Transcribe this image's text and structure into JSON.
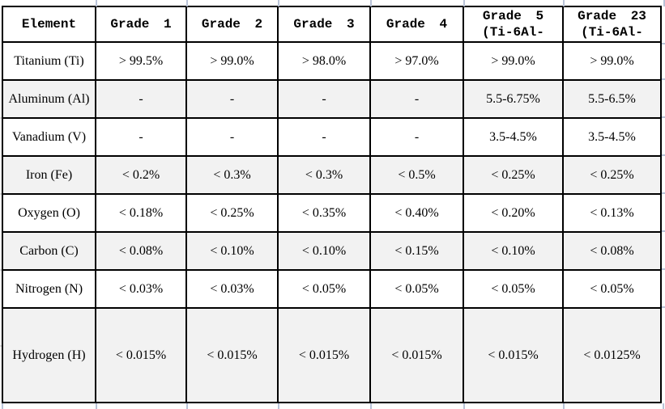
{
  "table": {
    "columns": [
      {
        "label": "Element"
      },
      {
        "label": "Grade 1"
      },
      {
        "label": "Grade 2"
      },
      {
        "label": "Grade 3"
      },
      {
        "label": "Grade 4"
      },
      {
        "label": "Grade 5\n(Ti-6Al-"
      },
      {
        "label": "Grade 23\n(Ti-6Al-"
      }
    ],
    "rows": [
      {
        "element": "Titanium (Ti)",
        "values": [
          "> 99.5%",
          "> 99.0%",
          "> 98.0%",
          "> 97.0%",
          "> 99.0%",
          "> 99.0%"
        ]
      },
      {
        "element": "Aluminum (Al)",
        "values": [
          "-",
          "-",
          "-",
          "-",
          "5.5-6.75%",
          "5.5-6.5%"
        ]
      },
      {
        "element": "Vanadium (V)",
        "values": [
          "-",
          "-",
          "-",
          "-",
          "3.5-4.5%",
          "3.5-4.5%"
        ]
      },
      {
        "element": "Iron (Fe)",
        "values": [
          "< 0.2%",
          "< 0.3%",
          "< 0.3%",
          "< 0.5%",
          "< 0.25%",
          "< 0.25%"
        ]
      },
      {
        "element": "Oxygen (O)",
        "values": [
          "< 0.18%",
          "< 0.25%",
          "< 0.35%",
          "< 0.40%",
          "< 0.20%",
          "< 0.13%"
        ]
      },
      {
        "element": "Carbon (C)",
        "values": [
          "< 0.08%",
          "< 0.10%",
          "< 0.10%",
          "< 0.15%",
          "< 0.10%",
          "< 0.08%"
        ]
      },
      {
        "element": "Nitrogen (N)",
        "values": [
          "< 0.03%",
          "< 0.03%",
          "< 0.05%",
          "< 0.05%",
          "< 0.05%",
          "< 0.05%"
        ]
      },
      {
        "element": "Hydrogen (H)",
        "values": [
          "< 0.015%",
          "< 0.015%",
          "< 0.015%",
          "< 0.015%",
          "< 0.015%",
          "< 0.0125%"
        ]
      }
    ]
  },
  "colors": {
    "text": "#000000",
    "border": "#000000",
    "row_bg": "#ffffff",
    "row_alt_bg": "#f2f2f2",
    "gridline_artifact": "#b9c3d8"
  }
}
